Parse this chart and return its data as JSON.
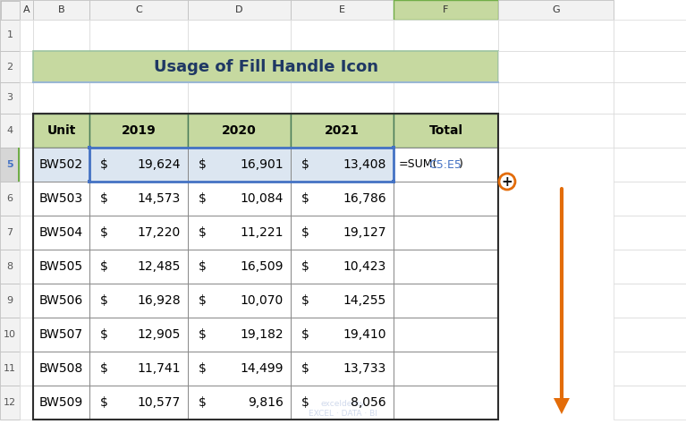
{
  "title": "Usage of Fill Handle Icon",
  "title_bg": "#c6d9a0",
  "title_border": "#9dc3a0",
  "title_text_color": "#1f3864",
  "header_bg": "#c6d9a0",
  "header_border": "#4a7c59",
  "row_bg": "#ffffff",
  "selected_row_bg": "#dce6f1",
  "selected_border": "#4472c4",
  "formula_col_bg": "#ffffff",
  "formula_col_border": "#70ad47",
  "formula_row_bg": "#ffffff",
  "col_headers": [
    "A",
    "B",
    "C",
    "D",
    "E",
    "F",
    "G"
  ],
  "row_numbers": [
    "1",
    "2",
    "3",
    "4",
    "5",
    "6",
    "7",
    "8",
    "9",
    "10",
    "11",
    "12"
  ],
  "table_headers": [
    "Unit",
    "2019",
    "2020",
    "2021",
    "Total"
  ],
  "units": [
    "BW502",
    "BW503",
    "BW504",
    "BW505",
    "BW506",
    "BW507",
    "BW508",
    "BW509"
  ],
  "data_2019": [
    19624,
    14573,
    17220,
    12485,
    16928,
    12905,
    11741,
    10577
  ],
  "data_2020": [
    16901,
    10084,
    11221,
    16509,
    10070,
    19182,
    14499,
    9816
  ],
  "data_2021": [
    13408,
    16786,
    19127,
    10423,
    14255,
    19410,
    13733,
    8056
  ],
  "formula_ref_color": "#4472c4",
  "arrow_color": "#e36c09",
  "col_header_bg": "#f2f2f2",
  "col_header_f_bg": "#c6d9a0",
  "rownumber_selected_bg": "#d6d6d6",
  "blue_bar_color": "#4472c4",
  "title_bottom_line_color": "#9ab7d3"
}
